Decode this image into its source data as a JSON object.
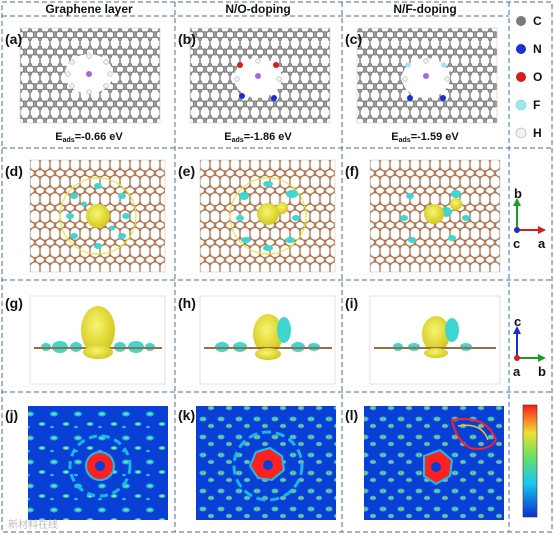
{
  "columns": [
    "Graphene layer",
    "N/O-doping",
    "N/F-doping"
  ],
  "panels": [
    "(a)",
    "(b)",
    "(c)",
    "(d)",
    "(e)",
    "(f)",
    "(g)",
    "(h)",
    "(i)",
    "(j)",
    "(k)",
    "(l)"
  ],
  "energies": {
    "a": {
      "prefix": "E",
      "sub": "ads",
      "value": "=-0.66 eV"
    },
    "b": {
      "prefix": "E",
      "sub": "ads",
      "value": "=-1.86 eV"
    },
    "c": {
      "prefix": "E",
      "sub": "ads",
      "value": "=-1.59 eV"
    }
  },
  "legend": [
    {
      "symbol": "C",
      "color": "#7a7a7a"
    },
    {
      "symbol": "N",
      "color": "#1c2fd0"
    },
    {
      "symbol": "O",
      "color": "#d91c1c"
    },
    {
      "symbol": "F",
      "color": "#9fe6ee"
    },
    {
      "symbol": "H",
      "color": "#f2f2f2"
    }
  ],
  "axes_top": {
    "up": "b",
    "origin": "c",
    "right": "a"
  },
  "axes_side": {
    "up": "c",
    "origin": "a",
    "right": "b"
  },
  "colors": {
    "carbon": "#8a8a8a",
    "bond": "#9a6b4a",
    "isosurface_yellow": "#e8e23a",
    "isosurface_cyan": "#3fd6d0",
    "contour_bg": "#0a3fd6",
    "contour_hot": "#ff2020"
  },
  "watermark": "新材料在线"
}
